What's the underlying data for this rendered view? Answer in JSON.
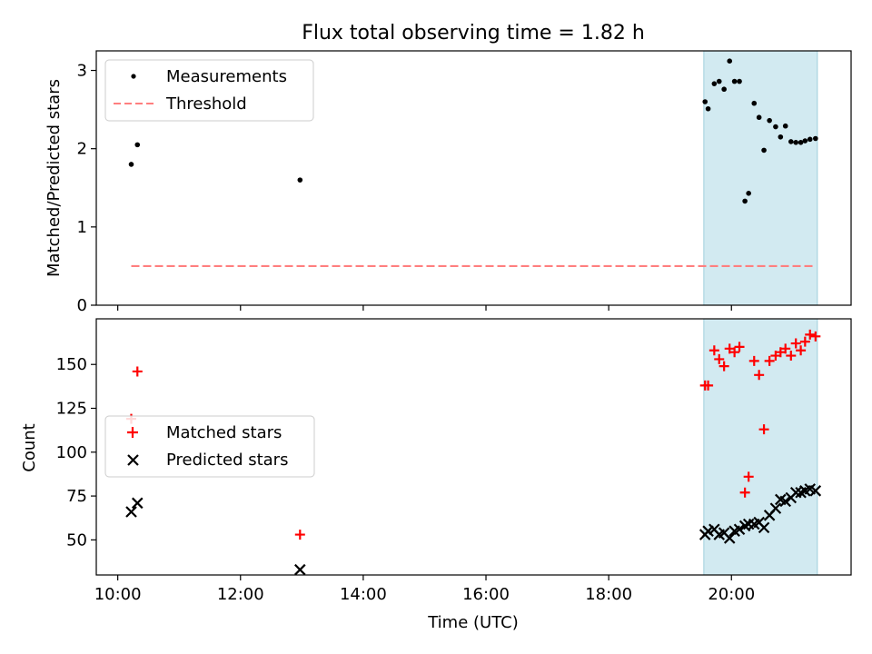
{
  "chart_data": [
    {
      "type": "scatter",
      "title": "Flux total observing time = 1.82 h",
      "xlabel": "",
      "ylabel": "Matched/Predicted stars",
      "xlim_hours": [
        9.65,
        21.95
      ],
      "ylim": [
        0,
        3.25
      ],
      "yticks": [
        0,
        1,
        2,
        3
      ],
      "shaded_span_hours": [
        19.55,
        21.4
      ],
      "shade_color": "#add8e6",
      "legend": {
        "position": "upper-left",
        "entries": [
          "Measurements",
          "Threshold"
        ]
      },
      "series": [
        {
          "name": "Measurements",
          "marker": "dot",
          "color": "#000000",
          "x": [
            10.22,
            10.32,
            12.97,
            19.57,
            19.62,
            19.72,
            19.8,
            19.88,
            19.97,
            20.05,
            20.13,
            20.22,
            20.28,
            20.37,
            20.45,
            20.53,
            20.62,
            20.72,
            20.8,
            20.88,
            20.97,
            21.05,
            21.13,
            21.2,
            21.28,
            21.37
          ],
          "y": [
            1.8,
            2.05,
            1.6,
            2.6,
            2.51,
            2.83,
            2.86,
            2.76,
            3.12,
            2.86,
            2.86,
            1.33,
            1.43,
            2.58,
            2.4,
            1.98,
            2.36,
            2.28,
            2.15,
            2.29,
            2.09,
            2.08,
            2.08,
            2.1,
            2.12,
            2.13
          ]
        },
        {
          "name": "Threshold",
          "marker": "dashed-line",
          "color": "#ff7f7f",
          "x": [
            10.22,
            21.37
          ],
          "y": [
            0.5,
            0.5
          ]
        }
      ]
    },
    {
      "type": "scatter",
      "title": "",
      "xlabel": "Time (UTC)",
      "ylabel": "Count",
      "xlim_hours": [
        9.65,
        21.95
      ],
      "xticks_hours": [
        10,
        12,
        14,
        16,
        18,
        20
      ],
      "xtick_labels": [
        "10:00",
        "12:00",
        "14:00",
        "16:00",
        "18:00",
        "20:00"
      ],
      "ylim": [
        30,
        176
      ],
      "yticks": [
        50,
        75,
        100,
        125,
        150
      ],
      "shaded_span_hours": [
        19.55,
        21.4
      ],
      "shade_color": "#add8e6",
      "legend": {
        "position": "center-left",
        "entries": [
          "Matched stars",
          "Predicted stars"
        ]
      },
      "series": [
        {
          "name": "Matched stars",
          "marker": "plus",
          "color": "#ff0000",
          "x": [
            10.22,
            10.32,
            12.97,
            19.57,
            19.62,
            19.72,
            19.8,
            19.88,
            19.97,
            20.05,
            20.13,
            20.22,
            20.28,
            20.37,
            20.45,
            20.53,
            20.62,
            20.72,
            20.8,
            20.88,
            20.97,
            21.05,
            21.13,
            21.2,
            21.28,
            21.37
          ],
          "y": [
            119,
            146,
            53,
            138,
            138,
            158,
            153,
            149,
            159,
            157,
            160,
            77,
            86,
            152,
            144,
            113,
            152,
            155,
            157,
            159,
            155,
            162,
            158,
            163,
            167,
            166
          ]
        },
        {
          "name": "Predicted stars",
          "marker": "x",
          "color": "#000000",
          "x": [
            10.22,
            10.32,
            12.97,
            19.57,
            19.62,
            19.72,
            19.8,
            19.88,
            19.97,
            20.05,
            20.13,
            20.22,
            20.28,
            20.37,
            20.45,
            20.53,
            20.62,
            20.72,
            20.8,
            20.88,
            20.97,
            21.05,
            21.13,
            21.2,
            21.28,
            21.37
          ],
          "y": [
            66,
            71,
            33,
            53,
            55,
            56,
            53,
            54,
            51,
            55,
            56,
            58,
            59,
            59,
            60,
            57,
            64,
            68,
            73,
            72,
            74,
            77,
            77,
            78,
            79,
            78
          ]
        }
      ]
    }
  ]
}
